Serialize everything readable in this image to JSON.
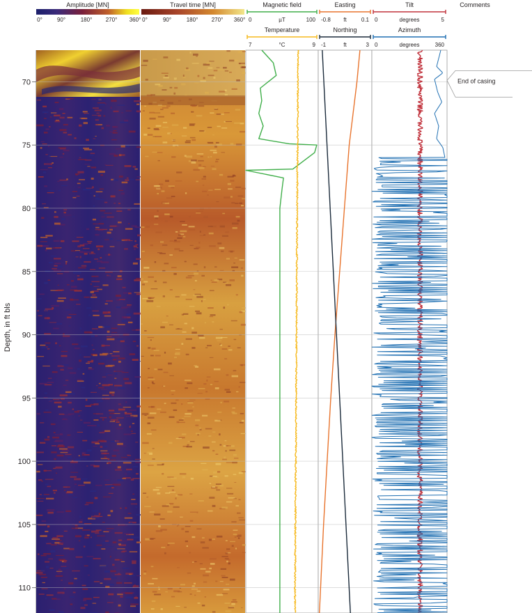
{
  "chart_data": {
    "type": "line",
    "ylabel": "Depth, in ft bls",
    "depth_range": [
      67.5,
      112
    ],
    "depth_ticks": [
      70,
      75,
      80,
      85,
      90,
      95,
      100,
      105,
      110
    ],
    "images": [
      {
        "name": "Amplitude [MN]",
        "ticks": [
          "0°",
          "90°",
          "180°",
          "270°",
          "360°"
        ],
        "colorscale": [
          "#1b1f6b",
          "#3a2a7a",
          "#7a1f3a",
          "#c0602a",
          "#f0e020",
          "#ffff40"
        ]
      },
      {
        "name": "Travel time [MN]",
        "ticks": [
          "0°",
          "90°",
          "180°",
          "270°",
          "360°"
        ],
        "colorscale": [
          "#6a1a10",
          "#a8442a",
          "#d4892f",
          "#f2e68a"
        ]
      }
    ],
    "tracks": [
      {
        "curves": [
          {
            "name": "Magnetic field",
            "unit": "µT",
            "range": [
              0,
              100
            ],
            "color": "#3fae49",
            "depth": [
              67.5,
              68.0,
              68.5,
              69.5,
              70.5,
              71.5,
              72.5,
              73.5,
              74.5,
              74.9,
              75.0,
              75.6,
              76.9,
              77.0,
              77.6,
              78.5,
              80,
              85,
              90,
              95,
              100,
              105,
              110,
              112
            ],
            "values": [
              22,
              30,
              38,
              42,
              20,
              22,
              18,
              24,
              18,
              60,
              98,
              95,
              65,
              0,
              52,
              50,
              47,
              47,
              47,
              47,
              47,
              47,
              47,
              47
            ]
          },
          {
            "name": "Temperature",
            "unit": "°C",
            "range": [
              7,
              9
            ],
            "color": "#f6b81b",
            "depth": [
              67.5,
              70,
              75,
              80,
              85,
              90,
              95,
              100,
              105,
              110,
              112
            ],
            "values": [
              8.45,
              8.44,
              8.43,
              8.42,
              8.41,
              8.4,
              8.39,
              8.38,
              8.37,
              8.36,
              8.36
            ]
          }
        ]
      },
      {
        "curves": [
          {
            "name": "Easting",
            "unit": "ft",
            "range": [
              -0.8,
              0.1
            ],
            "color": "#e8732c",
            "depth": [
              67.5,
              70,
              75,
              80,
              85,
              90,
              95,
              100,
              105,
              110,
              112
            ],
            "values": [
              -0.1,
              -0.15,
              -0.28,
              -0.36,
              -0.44,
              -0.52,
              -0.59,
              -0.65,
              -0.71,
              -0.76,
              -0.78
            ]
          },
          {
            "name": "Northing",
            "unit": "ft",
            "range": [
              -1,
              3
            ],
            "color": "#1a2a3a",
            "depth": [
              67.5,
              112
            ],
            "values": [
              -0.7,
              1.4
            ]
          }
        ]
      },
      {
        "curves": [
          {
            "name": "Tilt",
            "unit": "degrees",
            "range": [
              0,
              5
            ],
            "color": "#c0303a",
            "depth": [
              67.5,
              112
            ],
            "values": [
              3.2,
              3.2
            ]
          },
          {
            "name": "Azimuth",
            "unit": "degrees",
            "range": [
              0,
              360
            ],
            "color": "#1f6fb2",
            "depth": [
              67.5,
              68.8,
              69.3,
              69.8,
              70.8,
              71.6,
              72.5,
              73.5,
              74.5,
              75.2,
              76.0
            ],
            "values": [
              330,
              310,
              340,
              300,
              315,
              335,
              300,
              320,
              310,
              340,
              350
            ]
          }
        ]
      }
    ],
    "annotations": [
      {
        "text": "Comments",
        "kind": "column-header"
      },
      {
        "text": "End of casing",
        "depth": 70
      }
    ]
  }
}
